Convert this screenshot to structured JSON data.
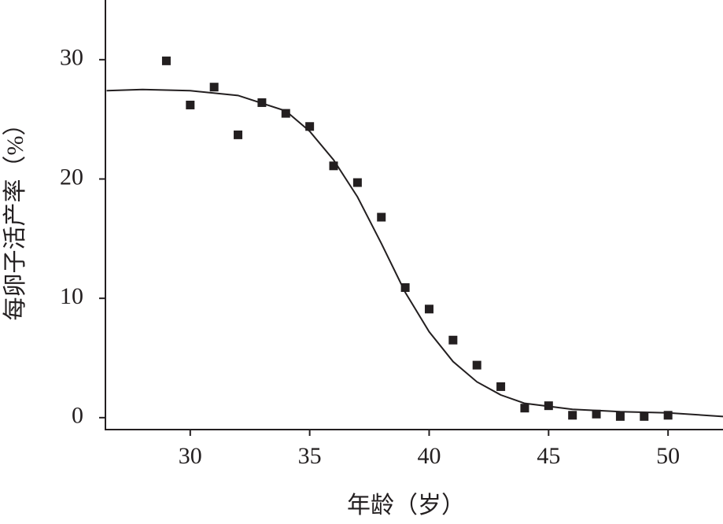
{
  "chart_data": {
    "type": "scatter",
    "x_label": "年龄（岁）",
    "y_label": "每卵子活产率（%）",
    "xlim": [
      26.45,
      52.3
    ],
    "ylim": [
      -1,
      35
    ],
    "xticks": [
      30,
      35,
      40,
      45,
      50
    ],
    "yticks": [
      0,
      10,
      20,
      30
    ],
    "series": [
      {
        "marker": "square",
        "color": "#231f20",
        "x": [
          29,
          30,
          31,
          32,
          33,
          34,
          35,
          36,
          37,
          38,
          39,
          40,
          41,
          42,
          43,
          44,
          45,
          46,
          47,
          48,
          49,
          50
        ],
        "values": [
          29.9,
          26.2,
          27.7,
          23.7,
          26.4,
          25.5,
          24.4,
          21.1,
          19.7,
          16.8,
          10.9,
          9.1,
          6.5,
          4.4,
          2.6,
          0.8,
          1.0,
          0.2,
          0.3,
          0.1,
          0.1,
          0.2
        ]
      },
      {
        "style": "line",
        "color": "#231f20",
        "x": [
          26.5,
          28,
          30,
          32,
          34,
          35,
          36,
          37,
          38,
          39,
          40,
          41,
          42,
          43,
          44,
          46,
          48,
          50,
          52.3
        ],
        "values": [
          27.4,
          27.5,
          27.4,
          27.0,
          25.7,
          24.0,
          21.6,
          18.5,
          14.6,
          10.5,
          7.2,
          4.7,
          3.0,
          1.9,
          1.2,
          0.7,
          0.5,
          0.4,
          0.1
        ]
      }
    ]
  }
}
